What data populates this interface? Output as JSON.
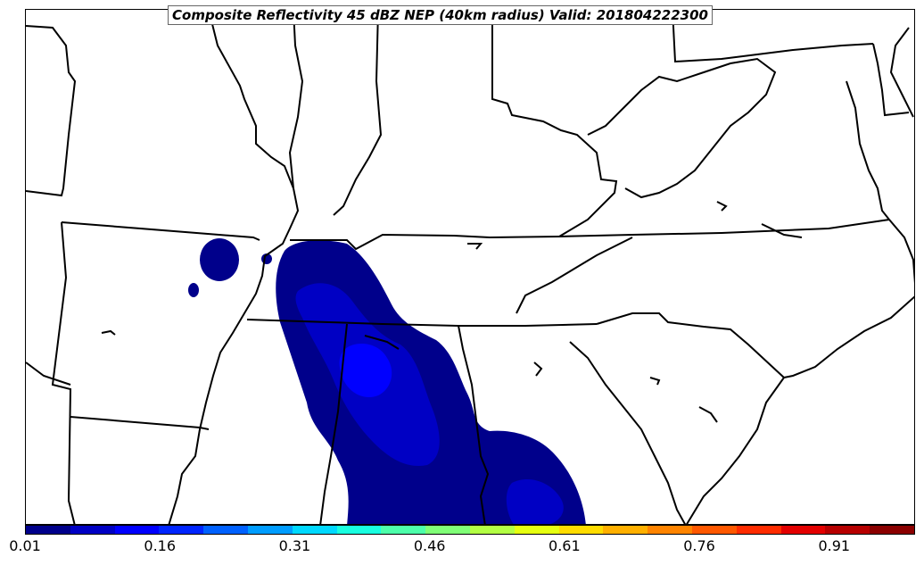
{
  "title": "Composite Reflectivity 45 dBZ NEP (40km radius) Valid: 201804222300",
  "colorbar": {
    "colors": [
      "#00008b",
      "#0000c4",
      "#0000ff",
      "#0025ff",
      "#0061ff",
      "#009dff",
      "#00d9ff",
      "#19ffe0",
      "#4dffaa",
      "#80ff77",
      "#b3ff44",
      "#e6ff11",
      "#ffdc00",
      "#ffb000",
      "#ff8400",
      "#ff5800",
      "#ff2c00",
      "#e30000",
      "#b70000",
      "#8b0000"
    ],
    "ticks": [
      {
        "label": "0.01",
        "value": 0.01
      },
      {
        "label": "0.16",
        "value": 0.16
      },
      {
        "label": "0.31",
        "value": 0.31
      },
      {
        "label": "0.46",
        "value": 0.46
      },
      {
        "label": "0.61",
        "value": 0.61
      },
      {
        "label": "0.76",
        "value": 0.76
      },
      {
        "label": "0.91",
        "value": 0.91
      }
    ],
    "min": 0.01,
    "max": 1.0
  },
  "colors": {
    "prob_low": "#00008b",
    "prob_mid": "#0000c4",
    "prob_high": "#0000ff",
    "state_lines": "#000000"
  }
}
